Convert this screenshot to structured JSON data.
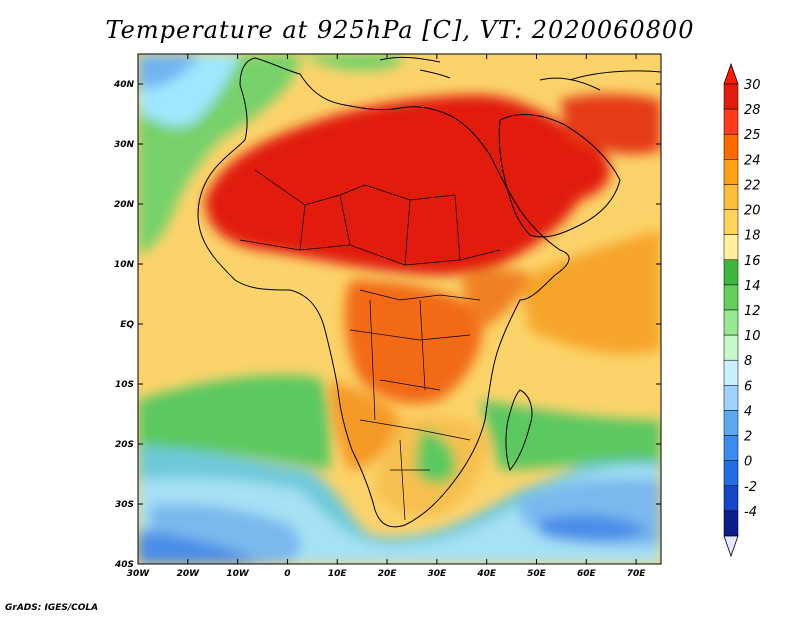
{
  "title": "Temperature at 925hPa [C], VT: 2020060800",
  "footer": "GrADS: IGES/COLA",
  "map": {
    "lon_ticks": [
      "30W",
      "20W",
      "10W",
      "0",
      "10E",
      "20E",
      "30E",
      "40E",
      "50E",
      "60E",
      "70E"
    ],
    "lat_ticks": [
      "40N",
      "30N",
      "20N",
      "10N",
      "EQ",
      "10S",
      "20S",
      "30S",
      "40S"
    ],
    "lon_range": [
      -30,
      75
    ],
    "lat_range": [
      -40,
      45
    ],
    "field": "temperature",
    "units": "C",
    "level": "925hPa"
  },
  "colorbar": {
    "labels": [
      "30",
      "28",
      "25",
      "24",
      "22",
      "20",
      "18",
      "16",
      "14",
      "12",
      "10",
      "8",
      "6",
      "4",
      "2",
      "0",
      "-2",
      "-4"
    ],
    "colors": [
      "#e11c0e",
      "#ff3b1d",
      "#ff6a00",
      "#ff9f12",
      "#ffbc3b",
      "#ffd25a",
      "#fff09a",
      "#3cb83c",
      "#62d05b",
      "#98e890",
      "#c8f8c8",
      "#c8f0ff",
      "#9ad4ff",
      "#5aaaf0",
      "#3c8cf0",
      "#1e6ee6",
      "#1446c8",
      "#0a1e8c"
    ],
    "end_top": "#ff1a00",
    "end_bottom": "#e6e6ff"
  }
}
